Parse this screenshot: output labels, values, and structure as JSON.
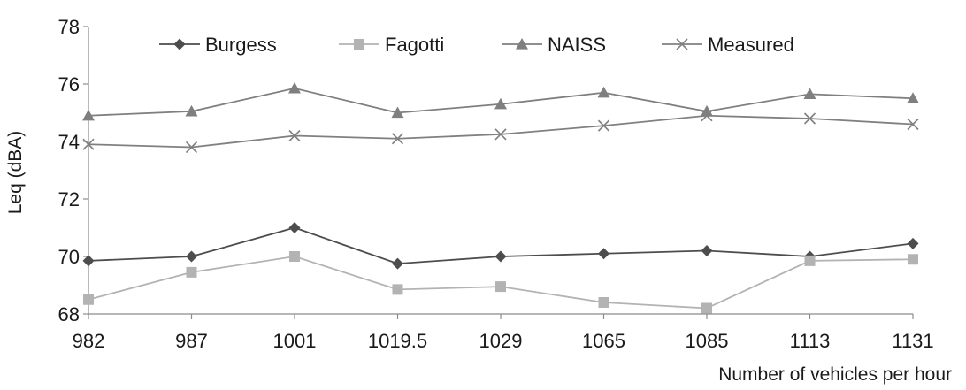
{
  "chart_data": {
    "type": "line",
    "title": "",
    "xlabel": "Number of vehicles per hour",
    "ylabel": "Leq (dBA)",
    "categories": [
      "982",
      "987",
      "1001",
      "1019.5",
      "1029",
      "1065",
      "1085",
      "1113",
      "1131"
    ],
    "ylim": [
      68,
      78
    ],
    "yticks": [
      68,
      70,
      72,
      74,
      76,
      78
    ],
    "grid": false,
    "legend_position": "top",
    "series": [
      {
        "name": "Burgess",
        "marker": "diamond",
        "color": "#4d4d4d",
        "values": [
          69.85,
          70.0,
          71.0,
          69.75,
          70.0,
          70.1,
          70.2,
          70.0,
          70.45
        ]
      },
      {
        "name": "Fagotti",
        "marker": "square",
        "color": "#b3b3b3",
        "values": [
          68.5,
          69.45,
          70.0,
          68.85,
          68.95,
          68.4,
          68.2,
          69.85,
          69.9
        ]
      },
      {
        "name": "NAISS",
        "marker": "triangle",
        "color": "#7f7f7f",
        "values": [
          74.9,
          75.05,
          75.85,
          75.0,
          75.3,
          75.7,
          75.05,
          75.65,
          75.5
        ]
      },
      {
        "name": "Measured",
        "marker": "x",
        "color": "#808080",
        "values": [
          73.9,
          73.8,
          74.2,
          74.1,
          74.25,
          74.55,
          74.9,
          74.8,
          74.6
        ]
      }
    ]
  }
}
